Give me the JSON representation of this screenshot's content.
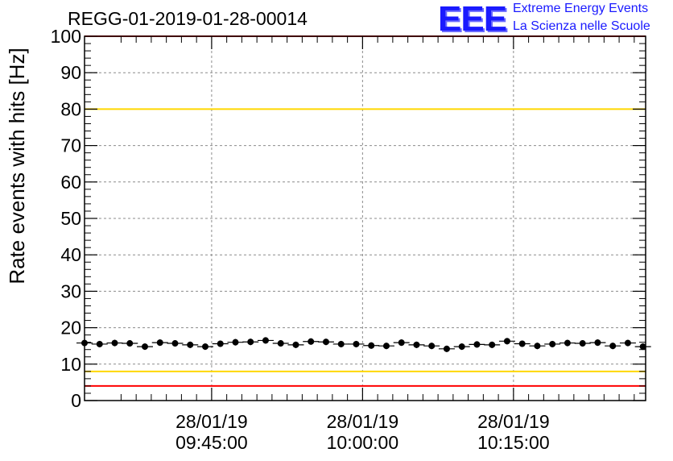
{
  "header": {
    "run_title": "REGG-01-2019-01-28-00014",
    "logo_text": "EEE",
    "logo_line1": "Extreme Energy Events",
    "logo_line2": "La Scienza nelle Scuole"
  },
  "colors": {
    "red_limit": "#ff0000",
    "yellow_limit": "#ffd700",
    "points": "#000000",
    "logo": "#1a1aff"
  },
  "chart_data": {
    "type": "scatter",
    "ylabel": "Rate events with hits [Hz]",
    "ylim": [
      0,
      100
    ],
    "y_ticks": [
      0,
      10,
      20,
      30,
      40,
      50,
      60,
      70,
      80,
      90,
      100
    ],
    "x_unit": "minutes",
    "xlim": [
      "09:32:22",
      "10:28:08"
    ],
    "x_ticks": [
      {
        "time": "09:45:00",
        "date": "28/01/19"
      },
      {
        "time": "10:00:00",
        "date": "28/01/19"
      },
      {
        "time": "10:15:00",
        "date": "28/01/19"
      }
    ],
    "grid": true,
    "reference_lines": [
      {
        "value": 100,
        "color": "red"
      },
      {
        "value": 80,
        "color": "yellow"
      },
      {
        "value": 8,
        "color": "yellow"
      },
      {
        "value": 4,
        "color": "red"
      }
    ],
    "series": [
      {
        "x": [
          "09:32:22",
          "09:33:52",
          "09:35:22",
          "09:36:52",
          "09:38:22",
          "09:39:52",
          "09:41:22",
          "09:42:52",
          "09:44:22",
          "09:45:52",
          "09:47:22",
          "09:48:52",
          "09:50:22",
          "09:51:52",
          "09:53:22",
          "09:54:52",
          "09:56:22",
          "09:57:52",
          "09:59:22",
          "10:00:52",
          "10:02:22",
          "10:03:52",
          "10:05:22",
          "10:06:52",
          "10:08:22",
          "10:09:52",
          "10:11:22",
          "10:12:52",
          "10:14:22",
          "10:15:52",
          "10:17:22",
          "10:18:52",
          "10:20:22",
          "10:21:52",
          "10:23:22",
          "10:24:52",
          "10:26:22",
          "10:27:52"
        ],
        "y": [
          15.8,
          15.5,
          15.8,
          15.7,
          14.8,
          15.9,
          15.7,
          15.3,
          14.8,
          15.6,
          16.0,
          16.1,
          16.5,
          15.7,
          15.3,
          16.2,
          16.1,
          15.5,
          15.5,
          15.1,
          15.0,
          15.9,
          15.3,
          15.0,
          14.2,
          14.8,
          15.4,
          15.3,
          16.3,
          15.6,
          15.0,
          15.5,
          15.8,
          15.7,
          15.9,
          15.0,
          15.8,
          14.8
        ]
      }
    ]
  }
}
